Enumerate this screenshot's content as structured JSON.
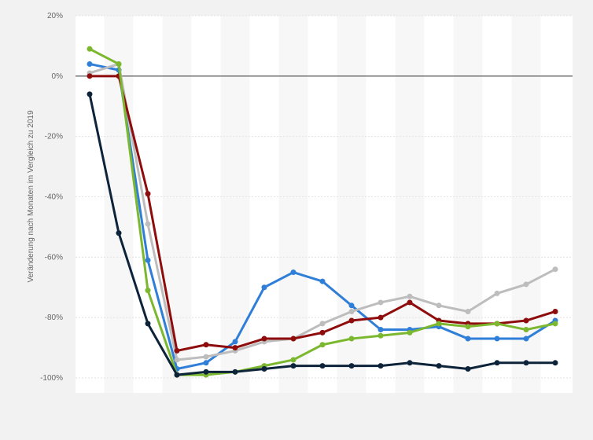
{
  "chart_data": {
    "type": "line",
    "title": "",
    "xlabel": "",
    "ylabel": "Veränderung nach Monaten im Vergleich zu 2019",
    "ylim": [
      -100,
      20
    ],
    "yticks": [
      20,
      0,
      -20,
      -40,
      -60,
      -80,
      -100
    ],
    "ytick_labels": [
      "20%",
      "0%",
      "-20%",
      "-40%",
      "-60%",
      "-80%",
      "-100%"
    ],
    "grid": true,
    "legend": "none",
    "x": [
      1,
      2,
      3,
      4,
      5,
      6,
      7,
      8,
      9,
      10,
      11,
      12,
      13,
      14,
      15,
      16,
      17
    ],
    "series": [
      {
        "color": "#2f7ed8",
        "values": [
          4,
          2,
          -61,
          -97,
          -95,
          -88,
          -70,
          -65,
          -68,
          -76,
          -84,
          -84,
          -83,
          -87,
          -87,
          -87,
          -81
        ]
      },
      {
        "color": "#bdbdbd",
        "values": [
          1,
          4,
          -49,
          -94,
          -93,
          -91,
          -88,
          -87,
          -82,
          -78,
          -75,
          -73,
          -76,
          -78,
          -72,
          -69,
          -64
        ]
      },
      {
        "color": "#8e0c0c",
        "values": [
          0,
          0,
          -39,
          -91,
          -89,
          -90,
          -87,
          -87,
          -85,
          -81,
          -80,
          -75,
          -81,
          -82,
          -82,
          -81,
          -78
        ]
      },
      {
        "color": "#7cb82f",
        "values": [
          9,
          4,
          -71,
          -99,
          -99,
          -98,
          -96,
          -94,
          -89,
          -87,
          -86,
          -85,
          -82,
          -83,
          -82,
          -84,
          -82
        ]
      },
      {
        "color": "#0d233a",
        "values": [
          -6,
          -52,
          -82,
          -99,
          -98,
          -98,
          -97,
          -96,
          -96,
          -96,
          -96,
          -95,
          -96,
          -97,
          -95,
          -95,
          -95
        ]
      }
    ]
  }
}
